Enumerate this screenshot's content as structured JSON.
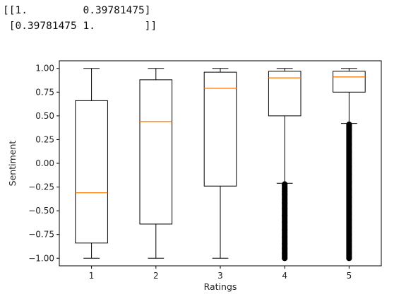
{
  "console_output": {
    "lines": [
      "[[1.         0.39781475]",
      " [0.39781475 1.        ]]"
    ]
  },
  "chart_data": {
    "type": "box",
    "title": "",
    "xlabel": "Ratings",
    "ylabel": "Sentiment",
    "categories": [
      "1",
      "2",
      "3",
      "4",
      "5"
    ],
    "ylim": [
      -1.08,
      1.08
    ],
    "yticks": [
      "1.00",
      "0.75",
      "0.50",
      "0.25",
      "0.00",
      "−0.25",
      "−0.50",
      "−0.75",
      "−1.00"
    ],
    "ytick_values": [
      1.0,
      0.75,
      0.5,
      0.25,
      0.0,
      -0.25,
      -0.5,
      -0.75,
      -1.0
    ],
    "grid": false,
    "colors": {
      "box": "#000000",
      "median": "#ff7f0e"
    },
    "boxes": [
      {
        "category": "1",
        "whisker_low": -1.0,
        "q1": -0.84,
        "median": -0.31,
        "q3": 0.66,
        "whisker_high": 1.0,
        "outliers": []
      },
      {
        "category": "2",
        "whisker_low": -1.0,
        "q1": -0.64,
        "median": 0.44,
        "q3": 0.88,
        "whisker_high": 1.0,
        "outliers": []
      },
      {
        "category": "3",
        "whisker_low": -1.0,
        "q1": -0.24,
        "median": 0.79,
        "q3": 0.96,
        "whisker_high": 1.0,
        "outliers": []
      },
      {
        "category": "4",
        "whisker_low": -0.21,
        "q1": 0.5,
        "median": 0.9,
        "q3": 0.97,
        "whisker_high": 1.0,
        "outliers": [
          -0.22,
          -0.27,
          -0.3,
          -0.33,
          -0.38,
          -0.42,
          -0.48,
          -0.55,
          -0.62,
          -0.7,
          -0.78,
          -0.85,
          -0.9,
          -0.95,
          -1.0
        ]
      },
      {
        "category": "5",
        "whisker_low": 0.42,
        "q1": 0.75,
        "median": 0.91,
        "q3": 0.97,
        "whisker_high": 1.0,
        "outliers": [
          0.41,
          0.35,
          0.28,
          0.2,
          0.12,
          0.05,
          -0.03,
          -0.12,
          -0.2,
          -0.28,
          -0.36,
          -0.45,
          -0.53,
          -0.6,
          -0.68,
          -0.75,
          -0.82,
          -0.88,
          -0.94,
          -1.0
        ]
      }
    ]
  }
}
